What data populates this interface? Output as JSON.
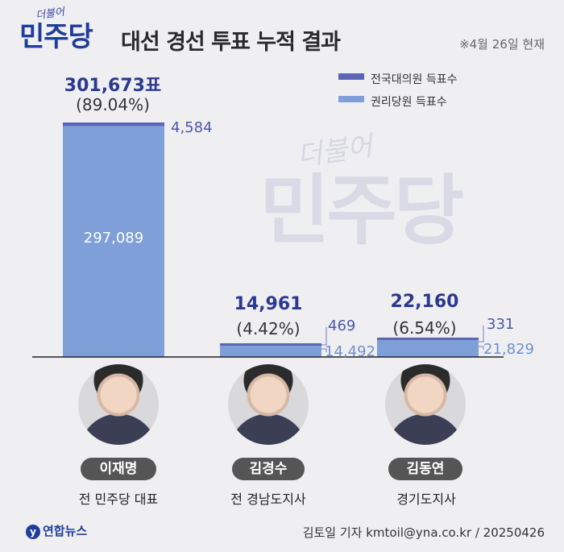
{
  "header": {
    "logo_small": "더불어",
    "logo_big": "민주당",
    "title": "대선 경선 투표 누적 결과",
    "note": "※4월 26일 현재"
  },
  "legend": [
    {
      "label": "전국대의원 득표수",
      "color": "#5a65b5"
    },
    {
      "label": "권리당원 득표수",
      "color": "#7e9fd8"
    }
  ],
  "watermark": {
    "small": "더불어",
    "big": "민주당"
  },
  "chart_data": {
    "type": "bar",
    "stacked": true,
    "categories": [
      "이재명",
      "김경수",
      "김동연"
    ],
    "series": [
      {
        "name": "권리당원 득표수",
        "values": [
          297089,
          14492,
          21829
        ],
        "color": "#7e9fd8"
      },
      {
        "name": "전국대의원 득표수",
        "values": [
          4584,
          469,
          331
        ],
        "color": "#5a65b5"
      }
    ],
    "totals": [
      "301,673표",
      "14,961",
      "22,160"
    ],
    "percents": [
      "(89.04%)",
      "(4.42%)",
      "(6.54%)"
    ],
    "member_labels": [
      "297,089",
      "14,492",
      "21,829"
    ],
    "delegate_labels": [
      "4,584",
      "469",
      "331"
    ]
  },
  "candidates": [
    {
      "name": "이재명",
      "role": "전 민주당 대표"
    },
    {
      "name": "김경수",
      "role": "전 경남도지사"
    },
    {
      "name": "김동연",
      "role": "경기도지사"
    }
  ],
  "footer": {
    "logo": "연합뉴스",
    "credit": "김토일 기자 kmtoil@yna.co.kr / 20250426"
  }
}
